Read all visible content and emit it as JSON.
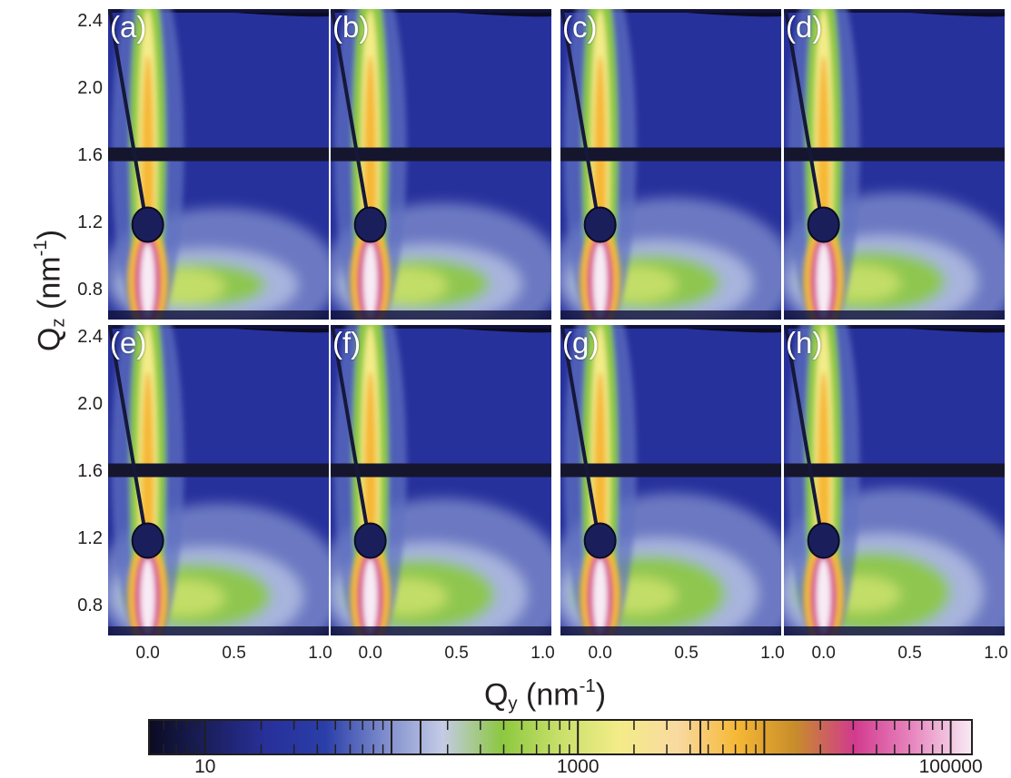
{
  "panel_labels": [
    "(a)",
    "(b)",
    "(c)",
    "(d)",
    "(e)",
    "(f)",
    "(g)",
    "(h)"
  ],
  "chart_data": {
    "type": "heatmap",
    "xlabel": {
      "base": "Q",
      "sub": "y",
      "rest": " (nm",
      "sup": "-1",
      "close": ")"
    },
    "ylabel": {
      "base": "Q",
      "sub": "z",
      "rest": " (nm",
      "sup": "-1",
      "close": ")"
    },
    "x_ticks": [
      "0.0",
      "0.5",
      "1.0"
    ],
    "x_tick_values": [
      0.0,
      0.5,
      1.0
    ],
    "y_ticks": [
      "2.4",
      "2.0",
      "1.6",
      "1.2",
      "0.8"
    ],
    "y_tick_values": [
      2.4,
      2.0,
      1.6,
      1.2,
      0.8
    ],
    "xlim": [
      -0.23,
      1.05
    ],
    "ylim": [
      0.62,
      2.47
    ],
    "colorbar": {
      "scale": "log",
      "range": [
        5,
        130000
      ],
      "tick_labels": [
        "10",
        "1000",
        "100000"
      ],
      "tick_values": [
        10,
        1000,
        100000
      ],
      "colors": [
        "#0b0b22",
        "#1a1f5c",
        "#28309a",
        "#2a3ea8",
        "#7d8ccc",
        "#c4cbe6",
        "#8cc83f",
        "#c9e06b",
        "#f3ec88",
        "#f9d9a0",
        "#f6b835",
        "#c78c2a",
        "#d23a8e",
        "#e888c0",
        "#f8ebf5"
      ]
    },
    "panel_titles": [
      "(a)",
      "(b)",
      "(c)",
      "(d)",
      "(e)",
      "(f)",
      "(g)",
      "(h)"
    ]
  }
}
